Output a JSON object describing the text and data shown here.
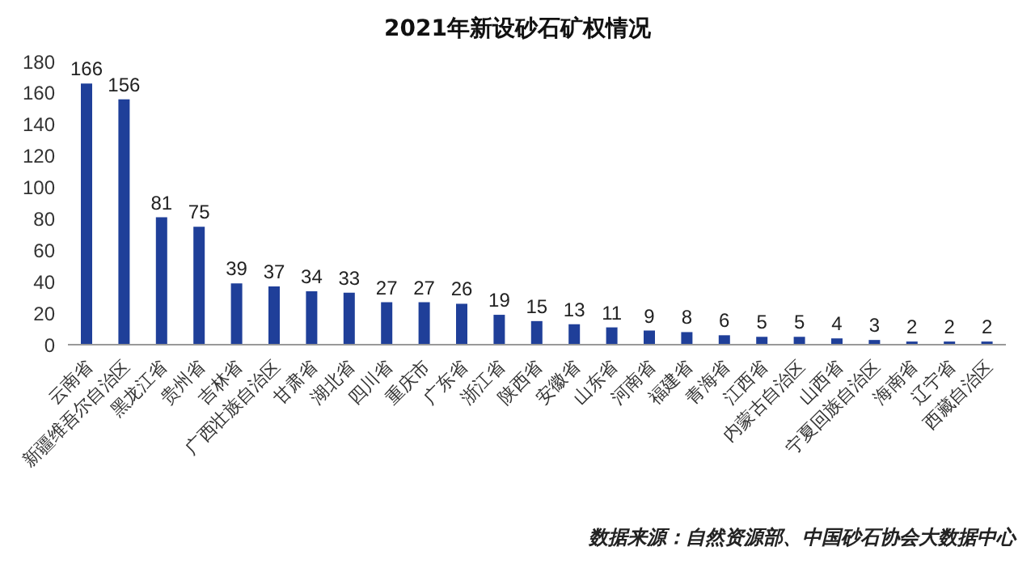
{
  "chart_data": {
    "type": "bar",
    "title": "2021年新设砂石矿权情况",
    "categories": [
      "云南省",
      "新疆维吾尔自治区",
      "黑龙江省",
      "贵州省",
      "吉林省",
      "广西壮族自治区",
      "甘肃省",
      "湖北省",
      "四川省",
      "重庆市",
      "广东省",
      "浙江省",
      "陕西省",
      "安徽省",
      "山东省",
      "河南省",
      "福建省",
      "青海省",
      "江西省",
      "内蒙古自治区",
      "山西省",
      "宁夏回族自治区",
      "海南省",
      "辽宁省",
      "西藏自治区"
    ],
    "values": [
      166,
      156,
      81,
      75,
      39,
      37,
      34,
      33,
      27,
      27,
      26,
      19,
      15,
      13,
      11,
      9,
      8,
      6,
      5,
      5,
      4,
      3,
      2,
      2,
      2
    ],
    "color": "#1f3f99",
    "ylim": [
      0,
      180
    ],
    "yticks": [
      0,
      20,
      40,
      60,
      80,
      100,
      120,
      140,
      160,
      180
    ],
    "grid": false,
    "data_labels": true,
    "annotations": [
      "数据来源：自然资源部、中国砂石协会大数据中心"
    ]
  }
}
